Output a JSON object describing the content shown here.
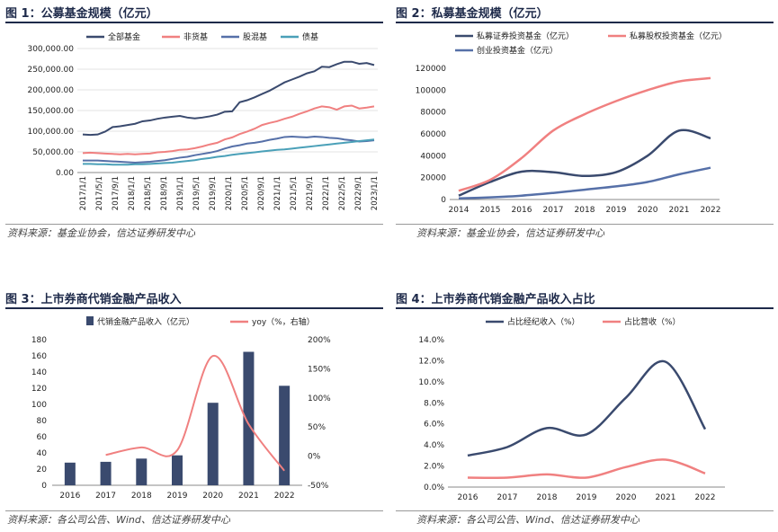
{
  "figures": [
    {
      "title": "图 1：公募基金规模（亿元）",
      "source": "资料来源：基金业协会，信达证券研发中心"
    },
    {
      "title": "图 2：私募基金规模（亿元）",
      "source": "资料来源：基金业协会，信达证券研发中心"
    },
    {
      "title": "图 3：上市券商代销金融产品收入",
      "source": "资料来源：各公司公告、Wind、信达证券研发中心"
    },
    {
      "title": "图 4：上市券商代销金融产品收入占比",
      "source": "资料来源：各公司公告、Wind、信达证券研发中心"
    }
  ],
  "colors": {
    "navy": "#3a4a6e",
    "salmon": "#f08080",
    "blue": "#5670a8",
    "teal": "#4aa0b8"
  },
  "chart_data": [
    {
      "type": "line",
      "title": "图 1：公募基金规模（亿元）",
      "x_ticks": [
        "2017/1/1",
        "2017/5/1",
        "2017/9/1",
        "2018/1/1",
        "2018/5/1",
        "2018/9/1",
        "2019/1/1",
        "2019/5/1",
        "2019/9/1",
        "2020/1/1",
        "2020/5/1",
        "2020/9/1",
        "2021/1/1",
        "2021/5/1",
        "2021/9/1",
        "2022/1/1",
        "2022/5/1",
        "2022/9/1",
        "2023/1/1"
      ],
      "y_ticks": [
        "0.00",
        "50,000.00",
        "100,000.00",
        "150,000.00",
        "200,000.00",
        "250,000.00",
        "300,000.00"
      ],
      "ylim": [
        0,
        300000
      ],
      "series": [
        {
          "name": "全部基金",
          "color": "#3a4a6e",
          "values": [
            92000,
            91000,
            92000,
            99000,
            110000,
            112000,
            115000,
            118000,
            124000,
            126000,
            130000,
            133000,
            135000,
            137000,
            133000,
            131000,
            133000,
            136000,
            140000,
            147000,
            148000,
            170000,
            175000,
            182000,
            190000,
            198000,
            208000,
            218000,
            225000,
            232000,
            240000,
            245000,
            256000,
            255000,
            262000,
            268000,
            268000,
            263000,
            265000,
            260000
          ]
        },
        {
          "name": "非货基",
          "color": "#f08080",
          "values": [
            47000,
            48000,
            47000,
            46000,
            45000,
            44000,
            45000,
            44000,
            45000,
            46000,
            49000,
            50000,
            52000,
            55000,
            56000,
            59000,
            63000,
            68000,
            72000,
            80000,
            85000,
            93000,
            99000,
            106000,
            115000,
            120000,
            124000,
            130000,
            135000,
            142000,
            148000,
            155000,
            160000,
            158000,
            152000,
            160000,
            162000,
            155000,
            157000,
            160000
          ]
        },
        {
          "name": "股混基",
          "color": "#5670a8",
          "values": [
            29000,
            29000,
            29000,
            28000,
            27000,
            26000,
            25000,
            24000,
            25000,
            26000,
            28000,
            30000,
            33000,
            36000,
            38000,
            42000,
            45000,
            48000,
            52000,
            58000,
            63000,
            66000,
            70000,
            72000,
            75000,
            79000,
            82000,
            86000,
            87000,
            86000,
            85000,
            87000,
            86000,
            84000,
            83000,
            80000,
            78000,
            75000,
            76000,
            78000
          ]
        },
        {
          "name": "债基",
          "color": "#4aa0b8",
          "values": [
            21000,
            21000,
            20000,
            20000,
            19000,
            19000,
            19000,
            20000,
            20000,
            21000,
            22000,
            23000,
            24000,
            26000,
            28000,
            30000,
            33000,
            35000,
            38000,
            40000,
            43000,
            45000,
            47000,
            49000,
            51000,
            53000,
            55000,
            56000,
            58000,
            60000,
            62000,
            64000,
            66000,
            68000,
            70000,
            72000,
            74000,
            76000,
            78000,
            80000
          ]
        }
      ]
    },
    {
      "type": "line",
      "title": "图 2：私募基金规模（亿元）",
      "categories": [
        "2014",
        "2015",
        "2016",
        "2017",
        "2018",
        "2019",
        "2020",
        "2021",
        "2022"
      ],
      "y_ticks": [
        "0",
        "20000",
        "40000",
        "60000",
        "80000",
        "100000",
        "120000"
      ],
      "ylim": [
        0,
        120000
      ],
      "series": [
        {
          "name": "私募证券投资基金（亿元）",
          "color": "#3a4a6e",
          "values": [
            3500,
            16000,
            25500,
            25000,
            21500,
            25000,
            40000,
            63000,
            56000
          ]
        },
        {
          "name": "私募股权投资基金（亿元）",
          "color": "#f08080",
          "values": [
            8000,
            18000,
            38000,
            63000,
            78000,
            90000,
            100000,
            108000,
            111000
          ]
        },
        {
          "name": "创业投资基金（亿元）",
          "color": "#5670a8",
          "values": [
            1000,
            2000,
            3500,
            6000,
            9000,
            12000,
            16000,
            23000,
            29000
          ]
        }
      ]
    },
    {
      "type": "bar",
      "title": "图 3：上市券商代销金融产品收入",
      "categories": [
        "2016",
        "2017",
        "2018",
        "2019",
        "2020",
        "2021",
        "2022"
      ],
      "y_ticks": [
        "0",
        "20",
        "40",
        "60",
        "80",
        "100",
        "120",
        "140",
        "160",
        "180"
      ],
      "y2_ticks": [
        "-50%",
        "0%",
        "50%",
        "100%",
        "150%",
        "200%"
      ],
      "ylim": [
        0,
        180
      ],
      "y2lim": [
        -50,
        200
      ],
      "series": [
        {
          "name": "代销金融产品收入（亿元）",
          "color": "#3a4a6e",
          "values": [
            28,
            29,
            33,
            37,
            102,
            165,
            123
          ]
        },
        {
          "name": "yoy（%，右轴）",
          "color": "#f08080",
          "values": [
            null,
            2,
            15,
            10,
            172,
            55,
            -25
          ]
        }
      ]
    },
    {
      "type": "line",
      "title": "图 4：上市券商代销金融产品收入占比",
      "categories": [
        "2016",
        "2017",
        "2018",
        "2019",
        "2020",
        "2021",
        "2022"
      ],
      "y_ticks": [
        "0.0%",
        "2.0%",
        "4.0%",
        "6.0%",
        "8.0%",
        "10.0%",
        "12.0%",
        "14.0%"
      ],
      "ylim": [
        0,
        14
      ],
      "series": [
        {
          "name": "占比经纪收入（%）",
          "color": "#3a4a6e",
          "values": [
            3.0,
            3.8,
            5.6,
            5.0,
            8.5,
            11.9,
            5.5
          ]
        },
        {
          "name": "占比营收（%）",
          "color": "#f08080",
          "values": [
            0.9,
            0.9,
            1.2,
            0.9,
            1.9,
            2.6,
            1.3
          ]
        }
      ]
    }
  ]
}
